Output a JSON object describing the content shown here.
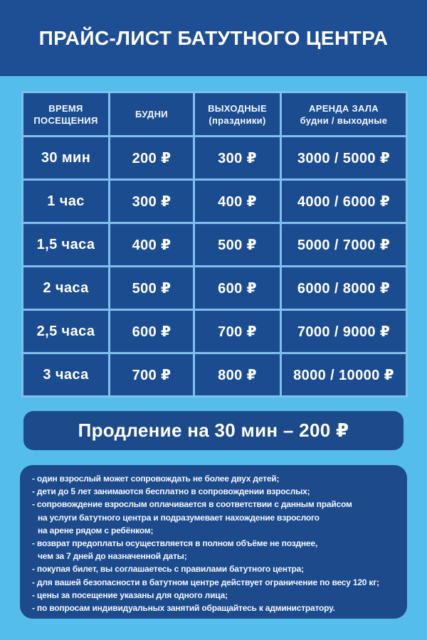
{
  "colors": {
    "background": "#55bdeb",
    "header_band": "#1e4f94",
    "table_cell": "#1c4c90",
    "grid_line": "#7fc0ec",
    "panel": "#1c4a8b",
    "text": "#ffffff"
  },
  "header": {
    "title": "ПРАЙС-ЛИСТ БАТУТНОГО ЦЕНТРА"
  },
  "price_table": {
    "columns": [
      {
        "line1": "ВРЕМЯ",
        "line2": "ПОСЕЩЕНИЯ"
      },
      {
        "line1": "БУДНИ",
        "line2": ""
      },
      {
        "line1": "ВЫХОДНЫЕ",
        "line2": "(праздники)"
      },
      {
        "line1": "АРЕНДА ЗАЛА",
        "line2": "будни / выходные"
      }
    ],
    "rows": [
      {
        "time": "30 мин",
        "weekday": "200 ₽",
        "weekend": "300 ₽",
        "rent": "3000 / 5000 ₽"
      },
      {
        "time": "1 час",
        "weekday": "300 ₽",
        "weekend": "400 ₽",
        "rent": "4000 / 6000 ₽"
      },
      {
        "time": "1,5 часа",
        "weekday": "400 ₽",
        "weekend": "500 ₽",
        "rent": "5000 / 7000 ₽"
      },
      {
        "time": "2 часа",
        "weekday": "500 ₽",
        "weekend": "600 ₽",
        "rent": "6000 / 8000 ₽"
      },
      {
        "time": "2,5 часа",
        "weekday": "600 ₽",
        "weekend": "700 ₽",
        "rent": "7000 / 9000 ₽"
      },
      {
        "time": "3 часа",
        "weekday": "700 ₽",
        "weekend": "800 ₽",
        "rent": "8000 / 10000 ₽"
      }
    ]
  },
  "extension_banner": {
    "text": "Продление на 30 мин – 200 ₽"
  },
  "rules": {
    "lines": [
      {
        "text": "- один взрослый может сопровождать не более двух детей;"
      },
      {
        "text": "- дети до 5 лет занимаются бесплатно в сопровождении взрослых;"
      },
      {
        "text": "- сопровождение взрослым оплачивается в соответствии с данным прайсом"
      },
      {
        "text": "на услуги батутного центра и подразумевает нахождение взрослого"
      },
      {
        "text": "на арене рядом с ребёнком;"
      },
      {
        "text": "- возврат предоплаты осуществляется в полном объёме не позднее,"
      },
      {
        "text": "чем за 7 дней до назначенной даты;"
      },
      {
        "text": "- покупая билет, вы соглашаетесь с правилами батутного центра;"
      },
      {
        "text": "- для вашей безопасности в батутном центре действует ограничение по весу 120 кг;"
      },
      {
        "text": "- цены за посещение указаны для одного лица;"
      },
      {
        "text": "- по вопросам индивидуальных занятий обращайтесь к администратору."
      }
    ]
  }
}
